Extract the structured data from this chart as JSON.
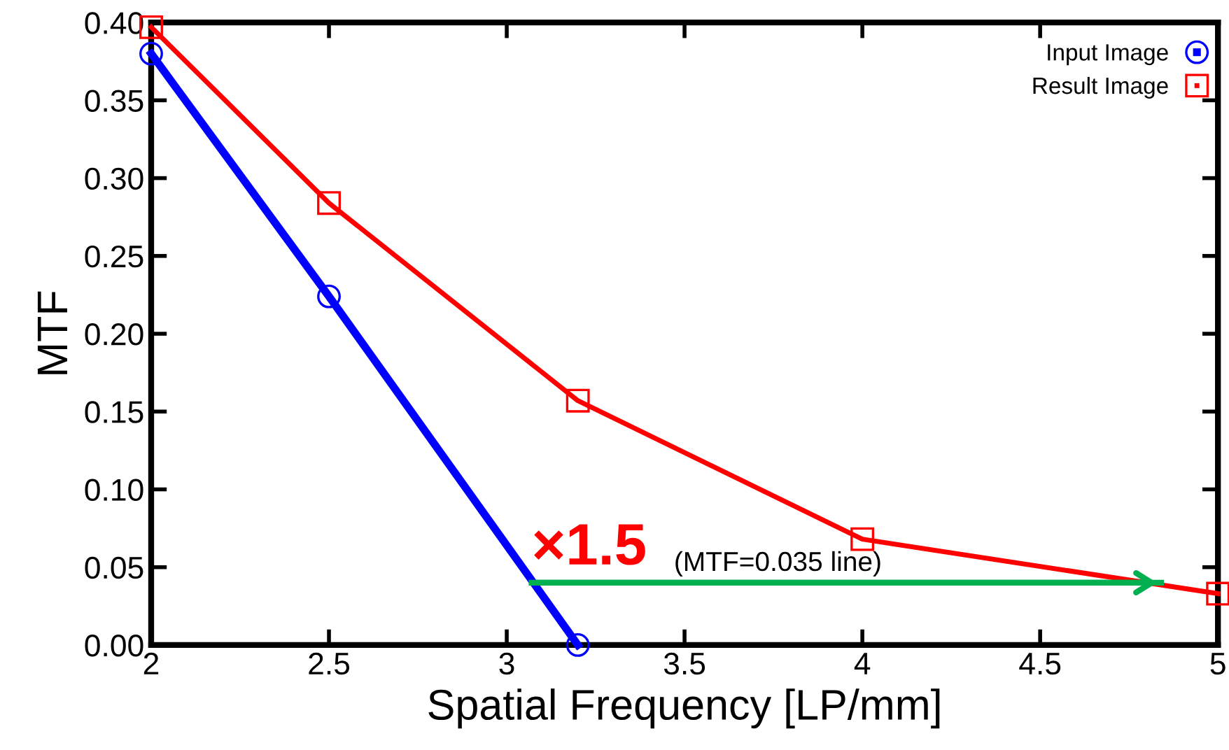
{
  "chart_data": {
    "type": "line",
    "xlabel": "Spatial Frequency [LP/mm]",
    "ylabel": "MTF",
    "xlim": [
      2,
      5
    ],
    "ylim": [
      0,
      0.4
    ],
    "xticks": [
      2,
      2.5,
      3,
      3.5,
      4,
      4.5,
      5
    ],
    "yticks": [
      {
        "value": 0,
        "label": "0.00"
      },
      {
        "value": 0.05,
        "label": "0.05"
      },
      {
        "value": 0.1,
        "label": "0.10"
      },
      {
        "value": 0.15,
        "label": "0.15"
      },
      {
        "value": 0.2,
        "label": "0.20"
      },
      {
        "value": 0.25,
        "label": "0.25"
      },
      {
        "value": 0.3,
        "label": "0.30"
      },
      {
        "value": 0.35,
        "label": "0.35"
      },
      {
        "value": 0.4,
        "label": "0.40"
      }
    ],
    "grid": false,
    "legend": "top right",
    "series": [
      {
        "name": "Input Image",
        "color": "#0000ff",
        "marker": "circle",
        "x": [
          2,
          2.5,
          3.2
        ],
        "values": [
          0.38,
          0.224,
          0.0
        ]
      },
      {
        "name": "Result Image",
        "color": "#ff0000",
        "marker": "square",
        "x": [
          2,
          2.5,
          3.2,
          4,
          5
        ],
        "values": [
          0.397,
          0.284,
          0.157,
          0.068,
          0.033
        ]
      },
      {
        "color": "#00b050",
        "marker": "none",
        "x": [
          3.07,
          4.84
        ],
        "values": [
          0.04,
          0.04
        ]
      }
    ],
    "annotations": [
      {
        "text": "×1.5",
        "x": 3.07,
        "y": 0.04
      },
      {
        "text": "(MTF=0.035 line)",
        "x": 3.47,
        "y": 0.04
      }
    ]
  }
}
